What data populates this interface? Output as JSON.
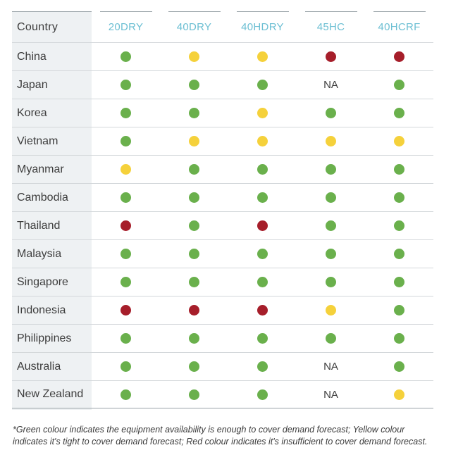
{
  "header": {
    "country": "Country",
    "columns": [
      "20DRY",
      "40DRY",
      "40HDRY",
      "45HC",
      "40HCRF"
    ]
  },
  "colors": {
    "green": "#6ab04c",
    "yellow": "#f5d13b",
    "red": "#a61e2a",
    "header_text": "#6cbfd3"
  },
  "rows": [
    {
      "country": "China",
      "values": [
        "green",
        "yellow",
        "yellow",
        "red",
        "red"
      ]
    },
    {
      "country": "Japan",
      "values": [
        "green",
        "green",
        "green",
        "NA",
        "green"
      ]
    },
    {
      "country": "Korea",
      "values": [
        "green",
        "green",
        "yellow",
        "green",
        "green"
      ]
    },
    {
      "country": "Vietnam",
      "values": [
        "green",
        "yellow",
        "yellow",
        "yellow",
        "yellow"
      ]
    },
    {
      "country": "Myanmar",
      "values": [
        "yellow",
        "green",
        "green",
        "green",
        "green"
      ]
    },
    {
      "country": "Cambodia",
      "values": [
        "green",
        "green",
        "green",
        "green",
        "green"
      ]
    },
    {
      "country": "Thailand",
      "values": [
        "red",
        "green",
        "red",
        "green",
        "green"
      ]
    },
    {
      "country": "Malaysia",
      "values": [
        "green",
        "green",
        "green",
        "green",
        "green"
      ]
    },
    {
      "country": "Singapore",
      "values": [
        "green",
        "green",
        "green",
        "green",
        "green"
      ]
    },
    {
      "country": "Indonesia",
      "values": [
        "red",
        "red",
        "red",
        "yellow",
        "green"
      ]
    },
    {
      "country": "Philippines",
      "values": [
        "green",
        "green",
        "green",
        "green",
        "green"
      ]
    },
    {
      "country": "Australia",
      "values": [
        "green",
        "green",
        "green",
        "NA",
        "green"
      ]
    },
    {
      "country": "New Zealand",
      "values": [
        "green",
        "green",
        "green",
        "NA",
        "yellow"
      ]
    }
  ],
  "footnote": "*Green colour indicates the equipment availability is enough to cover demand forecast; Yellow colour indicates it's tight to cover demand forecast; Red colour indicates it's insufficient to cover demand forecast."
}
